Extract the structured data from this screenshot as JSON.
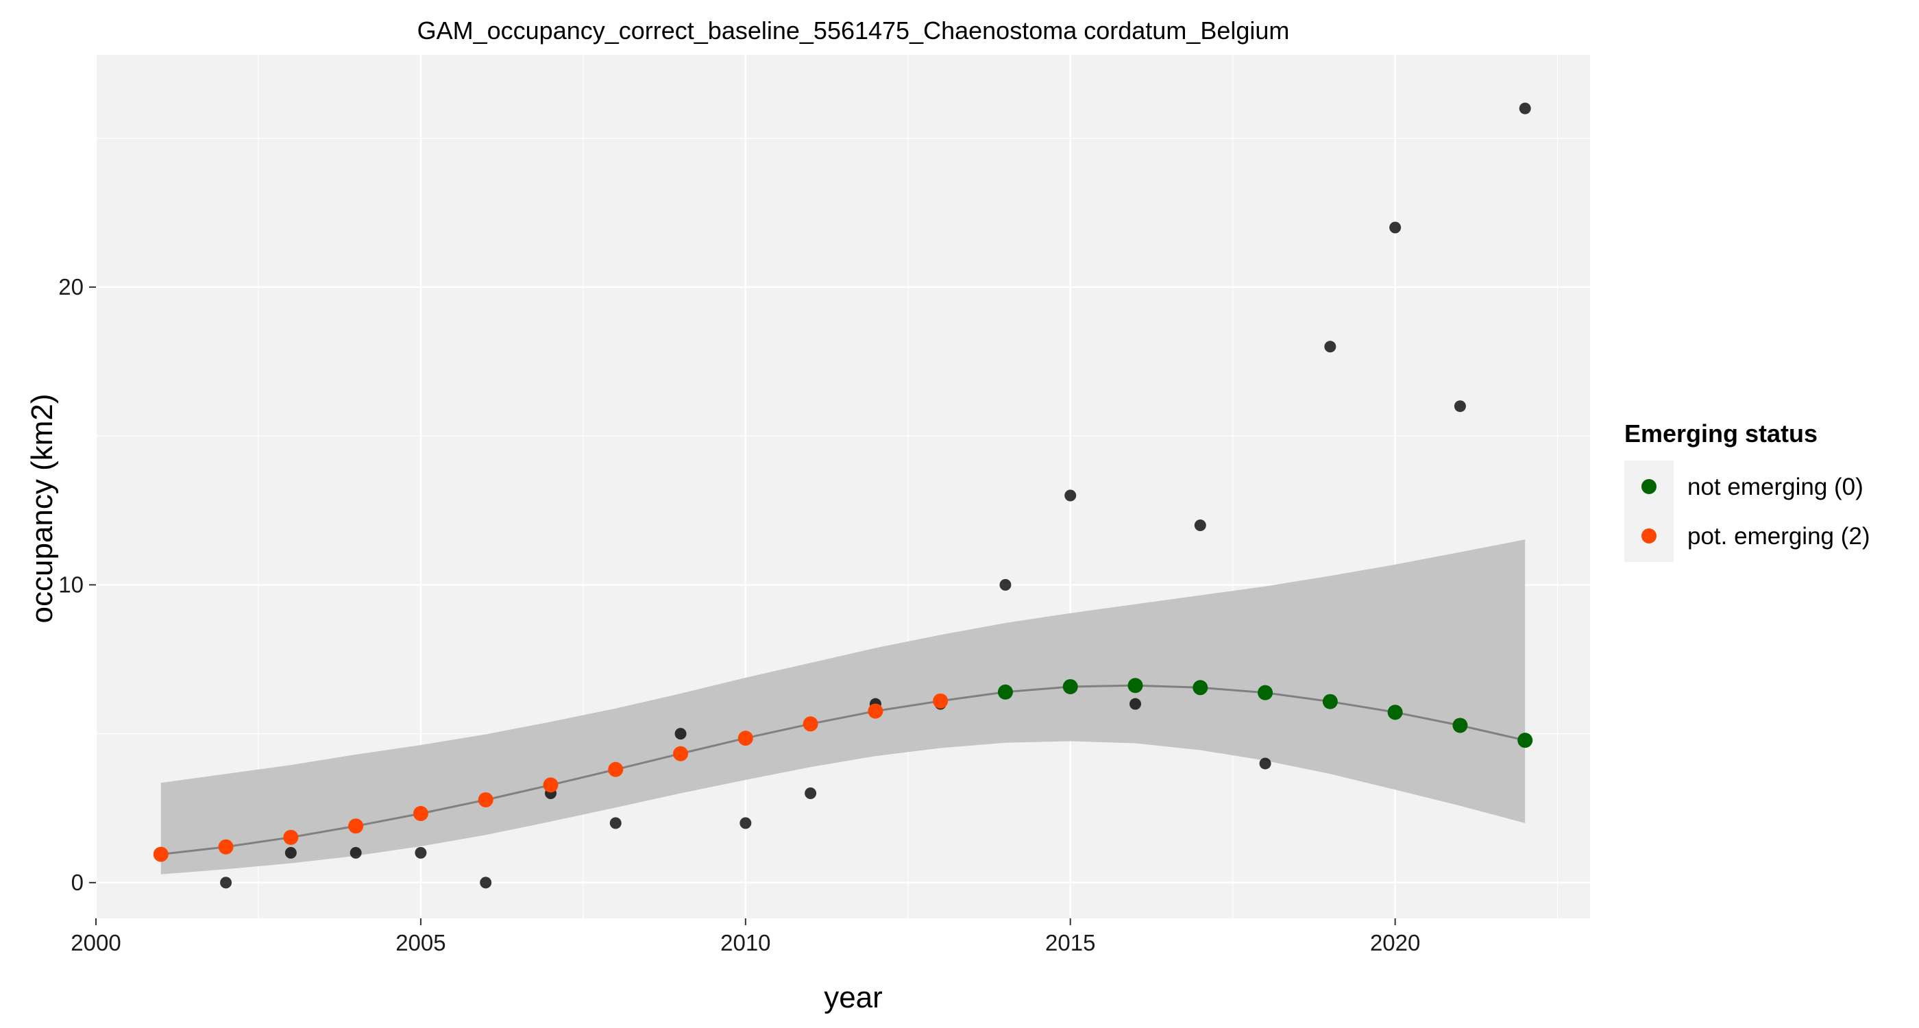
{
  "chart_data": {
    "type": "scatter",
    "title": "GAM_occupancy_correct_baseline_5561475_Chaenostoma cordatum_Belgium",
    "xlabel": "year",
    "ylabel": "occupancy (km2)",
    "xlim": [
      2000,
      2023
    ],
    "ylim": [
      -1.2,
      27.8
    ],
    "x_ticks": [
      2000,
      2005,
      2010,
      2015,
      2020
    ],
    "x_tick_labels": [
      "2000",
      "2005",
      "2010",
      "2015",
      "2020"
    ],
    "y_ticks": [
      0,
      10,
      20
    ],
    "y_tick_labels": [
      "0",
      "10",
      "20"
    ],
    "grid": true,
    "colors": {
      "panel": "#f2f2f2",
      "grid": "#ffffff",
      "observed": "#000000",
      "ribbon": "#c4c4c4",
      "fit_line": "#808080",
      "not_emerging": "#006400",
      "pot_emerging": "#ff4500"
    },
    "observed": {
      "x": [
        2001,
        2002,
        2003,
        2004,
        2005,
        2006,
        2007,
        2008,
        2009,
        2010,
        2011,
        2012,
        2013,
        2014,
        2015,
        2016,
        2017,
        2018,
        2019,
        2020,
        2021,
        2022
      ],
      "y": [
        1,
        0,
        1,
        1,
        1,
        0,
        3,
        2,
        5,
        2,
        3,
        6,
        6,
        10,
        13,
        6,
        12,
        4,
        18,
        22,
        16,
        26
      ]
    },
    "fit": {
      "x": [
        2001,
        2002,
        2003,
        2004,
        2005,
        2006,
        2007,
        2008,
        2009,
        2010,
        2011,
        2012,
        2013,
        2014,
        2015,
        2016,
        2017,
        2018,
        2019,
        2020,
        2021,
        2022
      ],
      "y": [
        0.95,
        1.2,
        1.52,
        1.9,
        2.32,
        2.78,
        3.28,
        3.8,
        4.33,
        4.85,
        5.33,
        5.76,
        6.1,
        6.4,
        6.58,
        6.62,
        6.55,
        6.38,
        6.08,
        5.72,
        5.28,
        4.78
      ],
      "lower": [
        0.28,
        0.45,
        0.65,
        0.9,
        1.22,
        1.6,
        2.05,
        2.52,
        3.0,
        3.45,
        3.88,
        4.25,
        4.52,
        4.7,
        4.75,
        4.68,
        4.45,
        4.1,
        3.65,
        3.12,
        2.58,
        2.0
      ],
      "upper": [
        3.35,
        3.65,
        3.95,
        4.3,
        4.62,
        4.98,
        5.4,
        5.85,
        6.35,
        6.88,
        7.38,
        7.88,
        8.32,
        8.72,
        9.05,
        9.35,
        9.65,
        9.95,
        10.3,
        10.68,
        11.1,
        11.52
      ],
      "status": [
        2,
        2,
        2,
        2,
        2,
        2,
        2,
        2,
        2,
        2,
        2,
        2,
        2,
        0,
        0,
        0,
        0,
        0,
        0,
        0,
        0,
        0
      ]
    },
    "legend": {
      "title": "Emerging status",
      "placement": "right",
      "entries": [
        {
          "label": "not emerging (0)",
          "color": "#006400"
        },
        {
          "label": "pot. emerging (2)",
          "color": "#ff4500"
        }
      ]
    }
  }
}
